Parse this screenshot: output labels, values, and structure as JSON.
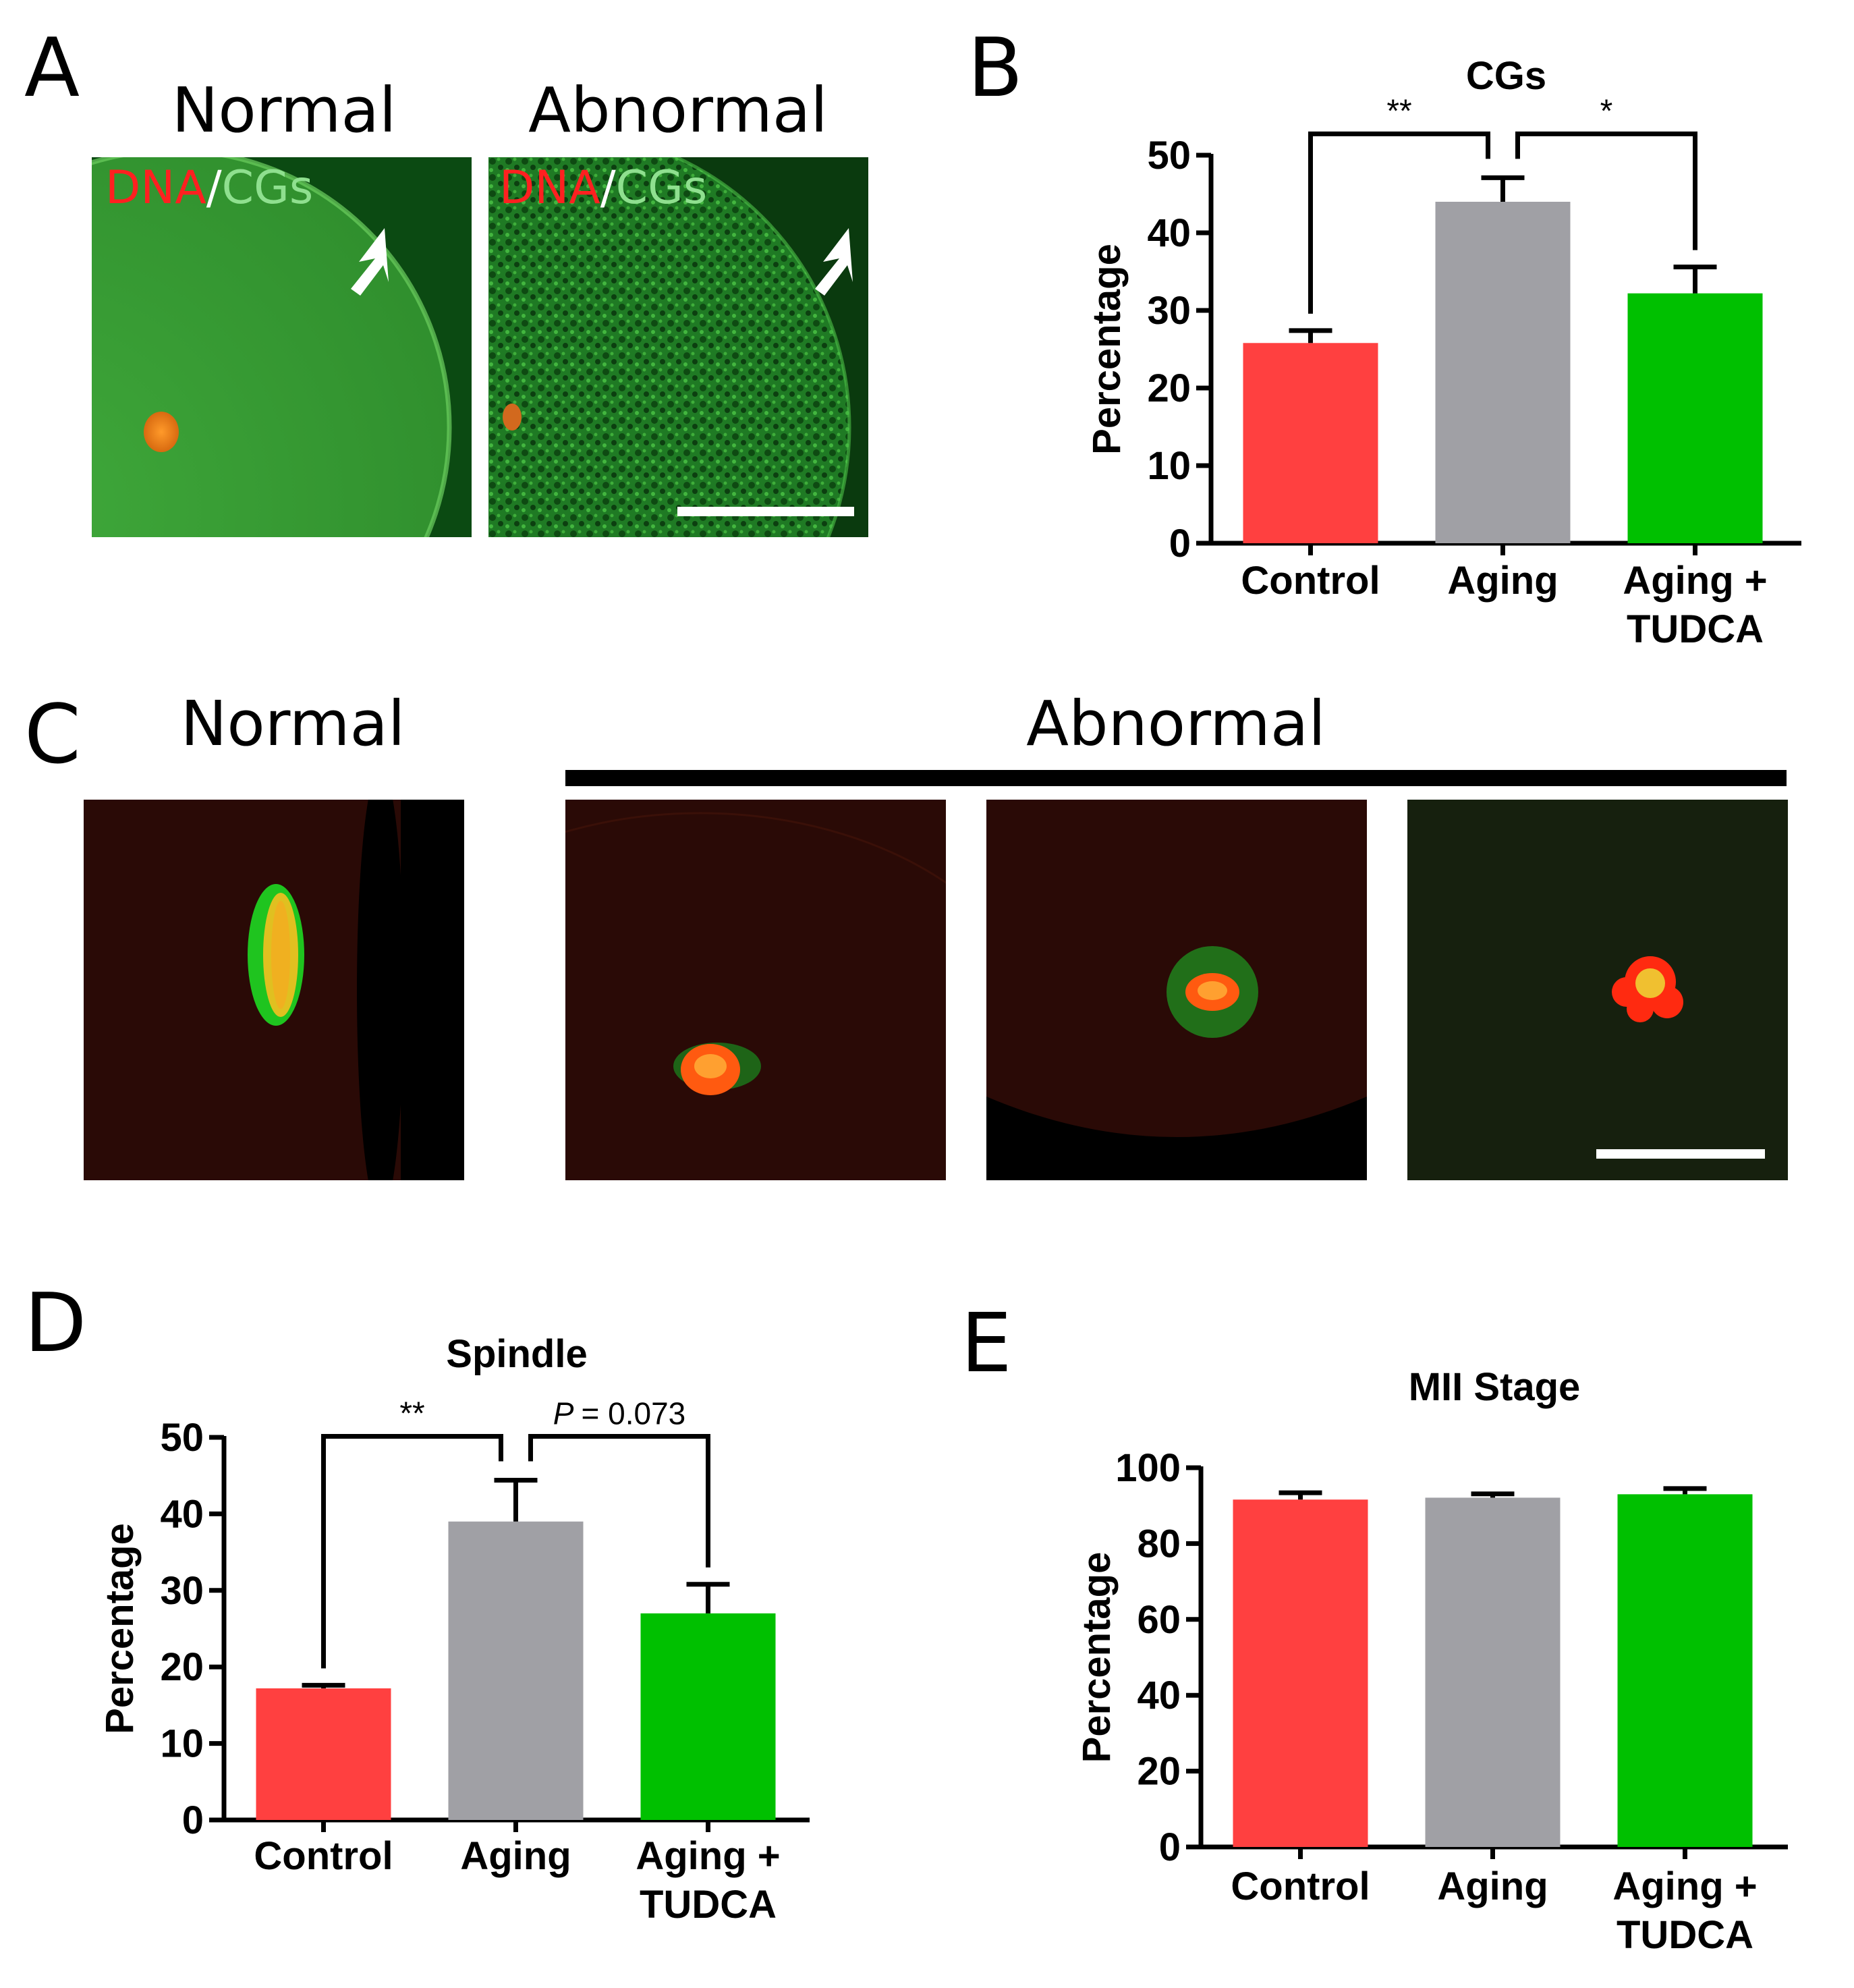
{
  "panels": {
    "A": {
      "letter": "A",
      "left_title": "Normal",
      "right_title": "Abnormal",
      "stain_dna": "DNA",
      "stain_sep": "/",
      "stain_cgs": "CGs"
    },
    "C": {
      "letter": "C",
      "left_title": "Normal",
      "right_title": "Abnormal"
    },
    "B": {
      "letter": "B"
    },
    "D": {
      "letter": "D"
    },
    "E": {
      "letter": "E"
    }
  },
  "colors": {
    "control": "#ff4040",
    "aging": "#a0a0a5",
    "tudca": "#00c000",
    "dna": "#ff2020",
    "cgs": "#8fe08f"
  },
  "chart_data": [
    {
      "id": "B",
      "type": "bar",
      "title": "CGs",
      "ylabel": "Percentage",
      "ylim": [
        0,
        50
      ],
      "yticks": [
        0,
        10,
        20,
        30,
        40,
        50
      ],
      "categories": [
        [
          "Control"
        ],
        [
          "Aging"
        ],
        [
          "Aging +",
          "TUDCA"
        ]
      ],
      "values": [
        25.8,
        44.0,
        32.2
      ],
      "errors": [
        1.6,
        3.1,
        3.4
      ],
      "annotations": [
        {
          "between": [
            0,
            1
          ],
          "label": "**",
          "italic_p": false
        },
        {
          "between": [
            1,
            2
          ],
          "label": "*",
          "italic_p": false
        }
      ]
    },
    {
      "id": "D",
      "type": "bar",
      "title": "Spindle",
      "ylabel": "Percentage",
      "ylim": [
        0,
        50
      ],
      "yticks": [
        0,
        10,
        20,
        30,
        40,
        50
      ],
      "categories": [
        [
          "Control"
        ],
        [
          "Aging"
        ],
        [
          "Aging +",
          "TUDCA"
        ]
      ],
      "values": [
        17.2,
        39.0,
        27.0
      ],
      "errors": [
        0.4,
        5.4,
        3.8
      ],
      "annotations": [
        {
          "between": [
            0,
            1
          ],
          "label": "**",
          "italic_p": false
        },
        {
          "between": [
            1,
            2
          ],
          "label": "= 0.073",
          "p_prefix": "P",
          "italic_p": true
        }
      ]
    },
    {
      "id": "E",
      "type": "bar",
      "title": "MII Stage",
      "ylabel": "Percentage",
      "ylim": [
        0,
        100
      ],
      "yticks": [
        0,
        20,
        40,
        60,
        80,
        100
      ],
      "categories": [
        [
          "Control"
        ],
        [
          "Aging"
        ],
        [
          "Aging +",
          "TUDCA"
        ]
      ],
      "values": [
        91.6,
        92.1,
        93.0
      ],
      "errors": [
        1.8,
        1.0,
        1.5
      ],
      "annotations": []
    }
  ]
}
